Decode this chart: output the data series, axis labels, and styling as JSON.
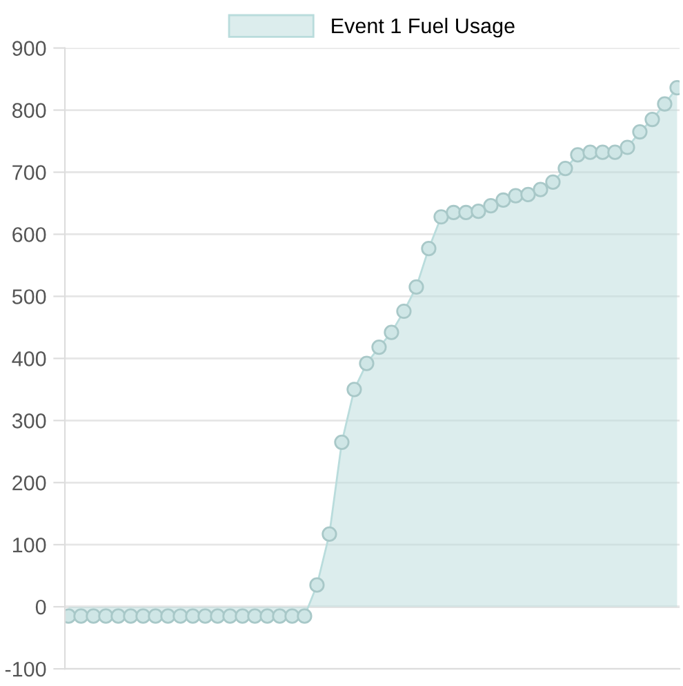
{
  "chart_data": {
    "type": "area",
    "categories": [
      null,
      null,
      null,
      null,
      null,
      null,
      null,
      null,
      null,
      null,
      null,
      null,
      null,
      null,
      null,
      null,
      null,
      null,
      null,
      null,
      null,
      null,
      null,
      null,
      null,
      null,
      null,
      null,
      null,
      null,
      null,
      null,
      null,
      null,
      null,
      null,
      null,
      null,
      null,
      null,
      null,
      null,
      null,
      null,
      null,
      null,
      null,
      null,
      null,
      null
    ],
    "series": [
      {
        "name": "Event 1 Fuel Usage",
        "color": "#b9dcdc",
        "values": [
          -15,
          -15,
          -15,
          -15,
          -15,
          -15,
          -15,
          -15,
          -15,
          -15,
          -15,
          -15,
          -15,
          -15,
          -15,
          -15,
          -15,
          -15,
          -15,
          -15,
          35,
          117,
          265,
          350,
          392,
          418,
          442,
          476,
          515,
          577,
          628,
          635,
          635,
          637,
          646,
          655,
          662,
          664,
          672,
          684,
          706,
          728,
          732,
          732,
          732,
          740,
          765,
          785,
          810,
          836
        ]
      }
    ],
    "ylim": [
      -100,
      900
    ],
    "yticks": [
      -100,
      0,
      100,
      200,
      300,
      400,
      500,
      600,
      700,
      800,
      900
    ],
    "grid": "y",
    "legend": "top",
    "marker": "circle",
    "line_style": "solid"
  }
}
